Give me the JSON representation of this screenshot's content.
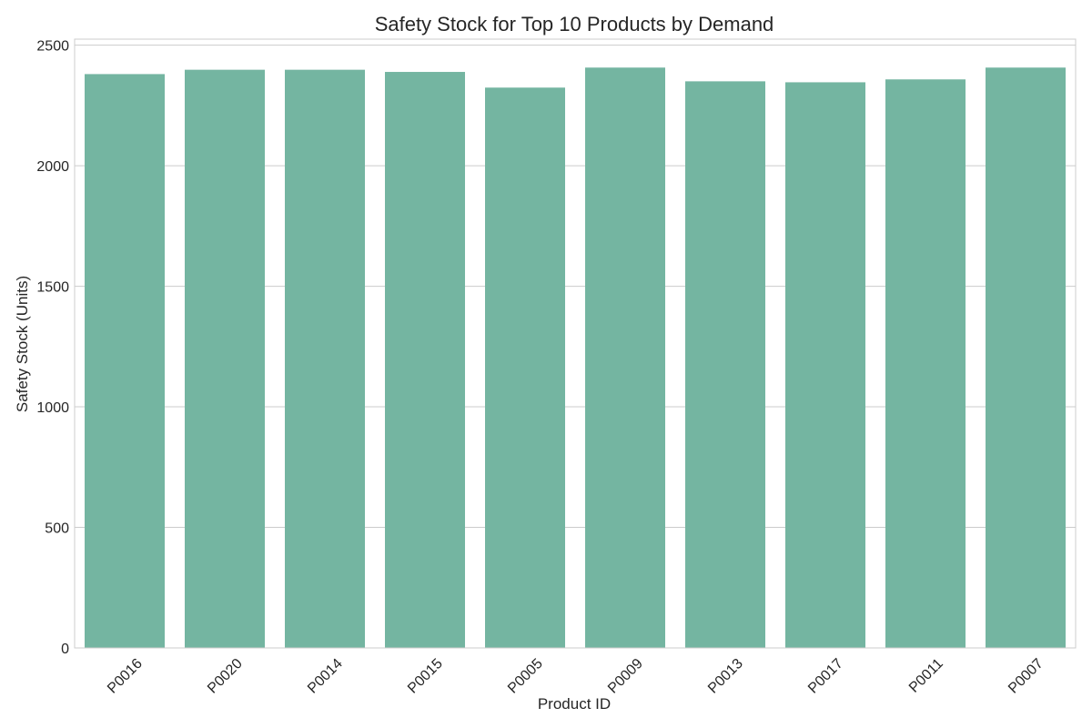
{
  "chart_data": {
    "type": "bar",
    "title": "Safety Stock for Top 10 Products by Demand",
    "xlabel": "Product ID",
    "ylabel": "Safety Stock (Units)",
    "categories": [
      "P0016",
      "P0020",
      "P0014",
      "P0015",
      "P0005",
      "P0009",
      "P0013",
      "P0017",
      "P0011",
      "P0007"
    ],
    "values": [
      2380,
      2398,
      2398,
      2389,
      2324,
      2407,
      2350,
      2346,
      2358,
      2407
    ],
    "ylim": [
      0,
      2525
    ],
    "yticks": [
      0,
      500,
      1000,
      1500,
      2000,
      2500
    ],
    "grid": true,
    "bar_color": "#74b5a1"
  }
}
